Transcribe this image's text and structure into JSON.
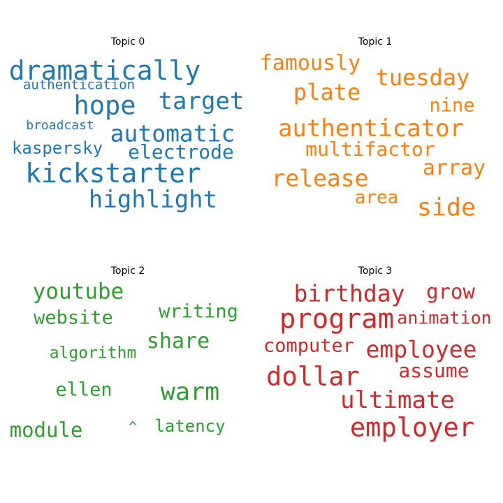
{
  "chart_data": {
    "type": "wordcloud",
    "panels": [
      {
        "title": "Topic 0",
        "color": "#1f77b4",
        "words": [
          "dramatically",
          "authentication",
          "hope",
          "target",
          "broadcast",
          "automatic",
          "kaspersky",
          "electrode",
          "kickstarter",
          "highlight"
        ]
      },
      {
        "title": "Topic 1",
        "color": "#ff7f0e",
        "words": [
          "famously",
          "tuesday",
          "plate",
          "nine",
          "authenticator",
          "multifactor",
          "array",
          "release",
          "area",
          "side"
        ]
      },
      {
        "title": "Topic 2",
        "color": "#2ca02c",
        "words": [
          "youtube",
          "website",
          "writing",
          "share",
          "algorithm",
          "ellen",
          "warm",
          "module",
          "^",
          "latency"
        ]
      },
      {
        "title": "Topic 3",
        "color": "#d62728",
        "words": [
          "birthday",
          "grow",
          "program",
          "animation",
          "computer",
          "employee",
          "assume",
          "dollar",
          "ultimate",
          "employer"
        ]
      }
    ]
  }
}
